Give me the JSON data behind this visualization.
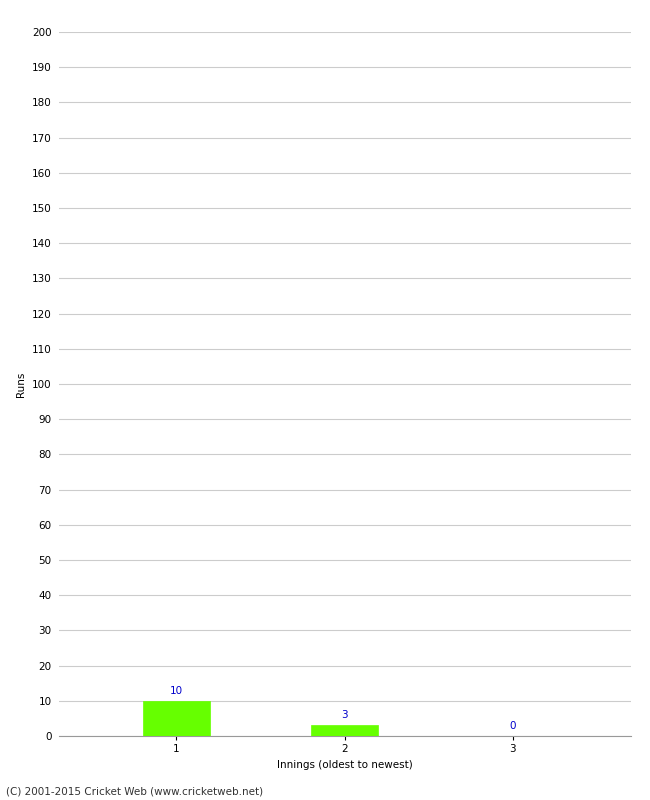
{
  "categories": [
    "1",
    "2",
    "3"
  ],
  "values": [
    10,
    3,
    0
  ],
  "bar_color": "#66ff00",
  "bar_edgecolor": "#66ff00",
  "xlabel": "Innings (oldest to newest)",
  "ylabel": "Runs",
  "ylim": [
    0,
    200
  ],
  "yticks": [
    0,
    10,
    20,
    30,
    40,
    50,
    60,
    70,
    80,
    90,
    100,
    110,
    120,
    130,
    140,
    150,
    160,
    170,
    180,
    190,
    200
  ],
  "label_color": "#0000cc",
  "label_fontsize": 7.5,
  "axis_fontsize": 7.5,
  "tick_fontsize": 7.5,
  "footer": "(C) 2001-2015 Cricket Web (www.cricketweb.net)",
  "footer_fontsize": 7.5,
  "background_color": "#ffffff",
  "grid_color": "#cccccc"
}
